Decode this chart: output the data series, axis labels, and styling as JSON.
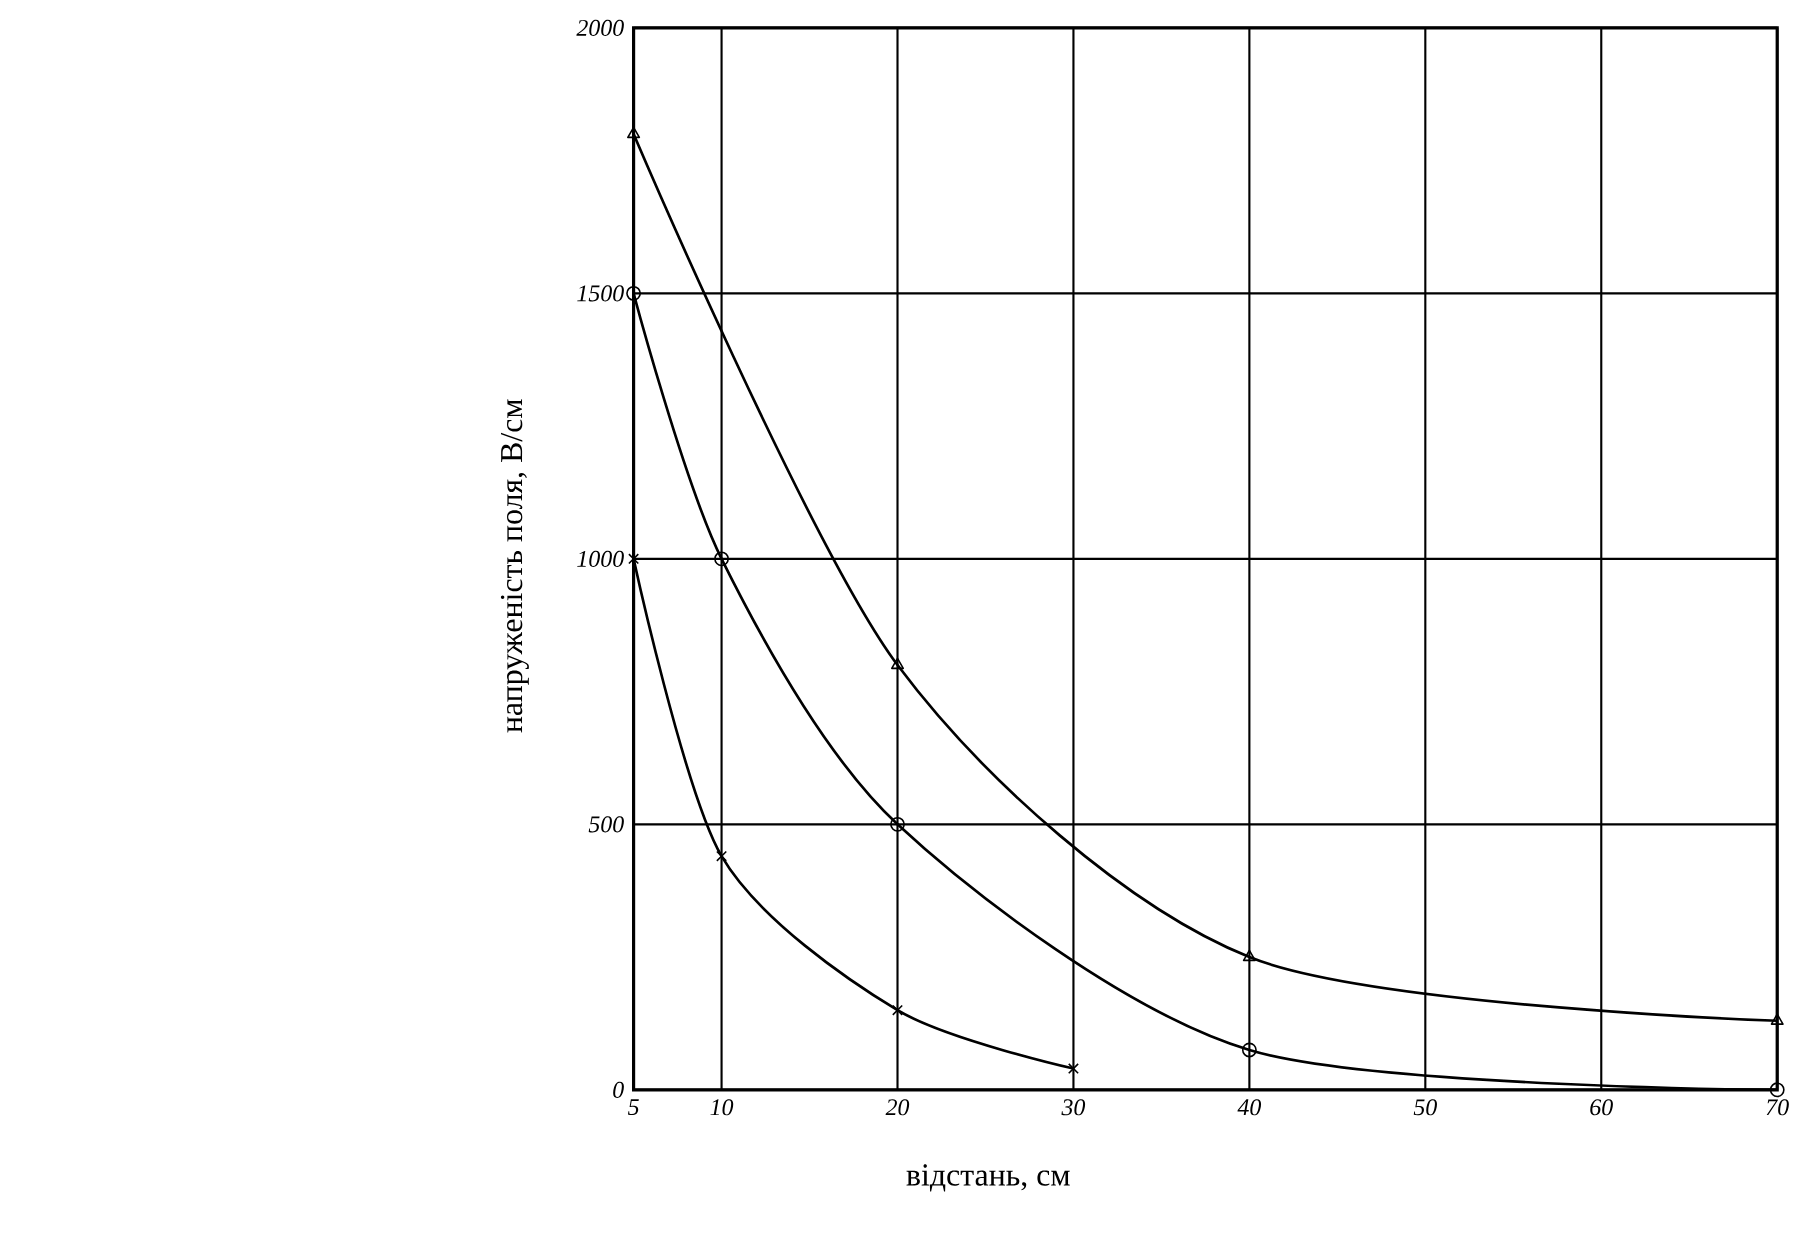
{
  "chart_data": {
    "type": "line",
    "xlabel": "відстань, см",
    "ylabel": "напруженість поля, В/см",
    "xlim": [
      5,
      70
    ],
    "ylim": [
      0,
      2000
    ],
    "xticks": [
      5,
      10,
      20,
      30,
      40,
      50,
      60,
      70
    ],
    "yticks": [
      0,
      500,
      1000,
      1500,
      2000
    ],
    "grid": true,
    "line_style": "solid",
    "series": [
      {
        "color": "#000000",
        "marker": "triangle",
        "x": [
          5,
          20,
          40,
          70
        ],
        "values": [
          1800,
          800,
          250,
          130
        ]
      },
      {
        "color": "#000000",
        "marker": "circle",
        "x": [
          5,
          10,
          20,
          40,
          70
        ],
        "values": [
          1500,
          1000,
          500,
          75,
          0
        ]
      },
      {
        "color": "#000000",
        "marker": "cross",
        "x": [
          5,
          10,
          20,
          30
        ],
        "values": [
          1000,
          440,
          150,
          40
        ]
      }
    ]
  }
}
